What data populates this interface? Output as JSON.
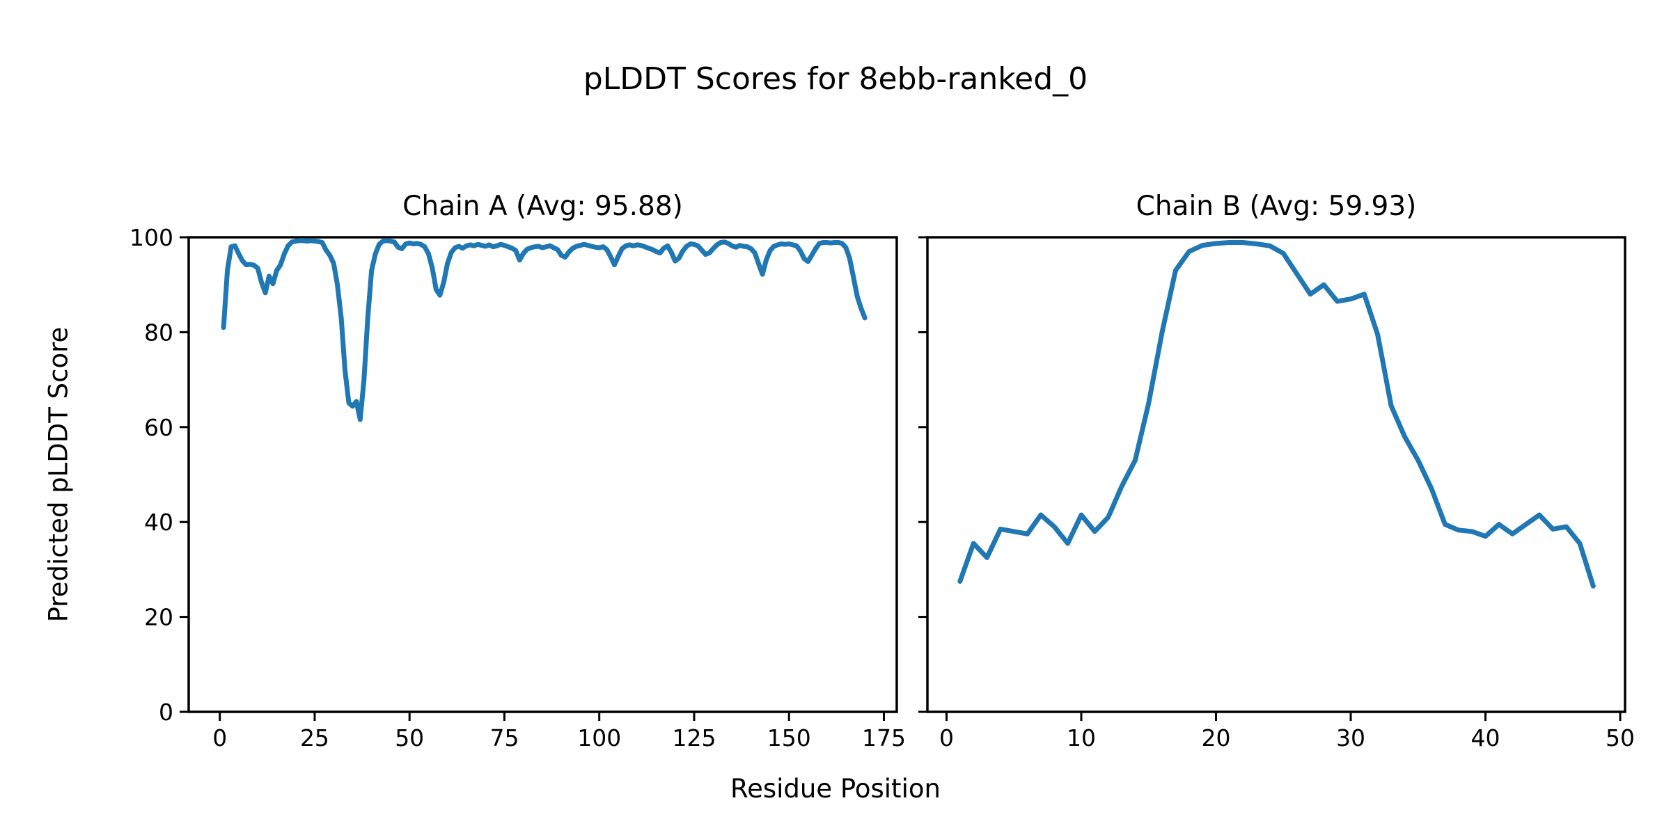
{
  "figure": {
    "title": "pLDDT Scores for 8ebb-ranked_0",
    "xlabel": "Residue Position",
    "ylabel": "Predicted pLDDT Score",
    "background_color": "#ffffff",
    "text_color": "#000000",
    "spine_color": "#000000"
  },
  "chart_data": [
    {
      "type": "line",
      "title": "Chain A (Avg: 95.88)",
      "series_name": "Chain A pLDDT",
      "average": 95.88,
      "line_color": "#1f77b4",
      "grid": false,
      "legend": "none",
      "x_start": 1,
      "xlim": [
        -8.2,
        178.4
      ],
      "ylim": [
        0,
        100
      ],
      "xticks": [
        0,
        25,
        50,
        75,
        100,
        125,
        150,
        175
      ],
      "yticks": [
        0,
        20,
        40,
        60,
        80,
        100
      ],
      "show_y_tick_labels": true,
      "values": [
        81,
        93,
        98,
        98.2,
        96.5,
        95,
        94.2,
        94.3,
        94.1,
        93.5,
        90.5,
        88.3,
        91.8,
        90.2,
        93,
        94.2,
        96.5,
        98.2,
        99,
        99.2,
        99.3,
        99.3,
        99.2,
        99.3,
        99.2,
        99.1,
        98.9,
        97.3,
        96.2,
        94.5,
        90,
        83,
        72,
        65.1,
        64.4,
        65.4,
        61.6,
        70,
        83,
        93,
        96.5,
        98.5,
        99.2,
        99.3,
        99.2,
        99,
        97.9,
        97.6,
        98.6,
        98.8,
        98.6,
        98.7,
        98.5,
        98,
        96.5,
        93.5,
        89,
        87.8,
        90.5,
        94.5,
        96.8,
        97.8,
        98.1,
        97.7,
        98.2,
        98.4,
        98.2,
        98.5,
        98.3,
        98.1,
        98.4,
        98,
        98.2,
        98.5,
        98.3,
        98,
        97.7,
        97.2,
        95.2,
        96.6,
        97.5,
        97.8,
        98,
        98.1,
        97.8,
        98,
        98.2,
        97.8,
        97.4,
        96.2,
        95.8,
        96.9,
        97.7,
        98.1,
        98.3,
        98.5,
        98.3,
        98.1,
        97.9,
        97.8,
        98,
        97.4,
        95.9,
        94.2,
        96,
        97.6,
        98.2,
        98.4,
        98.2,
        98.4,
        98.3,
        98,
        97.7,
        97.4,
        97,
        96.7,
        97.7,
        98.2,
        96.8,
        95,
        95.6,
        97.1,
        98.1,
        98.6,
        98.5,
        98.2,
        97.3,
        96.4,
        96.7,
        97.6,
        98.4,
        98.9,
        99,
        98.7,
        98.2,
        97.9,
        98.3,
        98.1,
        98,
        97.6,
        96.7,
        94.4,
        92.2,
        95.2,
        97.2,
        98.1,
        98.4,
        98.6,
        98.5,
        98.6,
        98.4,
        98.2,
        97.1,
        95.5,
        94.9,
        96.2,
        97.6,
        98.7,
        98.9,
        98.9,
        98.8,
        98.9,
        98.9,
        98.7,
        97.8,
        95.5,
        91.5,
        87.5,
        85,
        83
      ]
    },
    {
      "type": "line",
      "title": "Chain B (Avg: 59.93)",
      "series_name": "Chain B pLDDT",
      "average": 59.93,
      "line_color": "#1f77b4",
      "grid": false,
      "legend": "none",
      "x_start": 1,
      "xlim": [
        -1.42,
        50.36
      ],
      "ylim": [
        0,
        100
      ],
      "xticks": [
        0,
        10,
        20,
        30,
        40,
        50
      ],
      "yticks": [
        0,
        20,
        40,
        60,
        80,
        100
      ],
      "show_y_tick_labels": false,
      "values": [
        27.5,
        35.5,
        32.5,
        38.5,
        38,
        37.5,
        41.5,
        39,
        35.5,
        41.5,
        38,
        41,
        47.5,
        53,
        65,
        80,
        93,
        97,
        98.3,
        98.7,
        98.9,
        98.9,
        98.6,
        98.2,
        96.6,
        92.3,
        88,
        90,
        86.5,
        87,
        88,
        79.5,
        64.5,
        58,
        53,
        47,
        39.5,
        38.3,
        38,
        37,
        39.5,
        37.5,
        39.5,
        41.5,
        38.5,
        39,
        35.5,
        26.5
      ]
    }
  ]
}
